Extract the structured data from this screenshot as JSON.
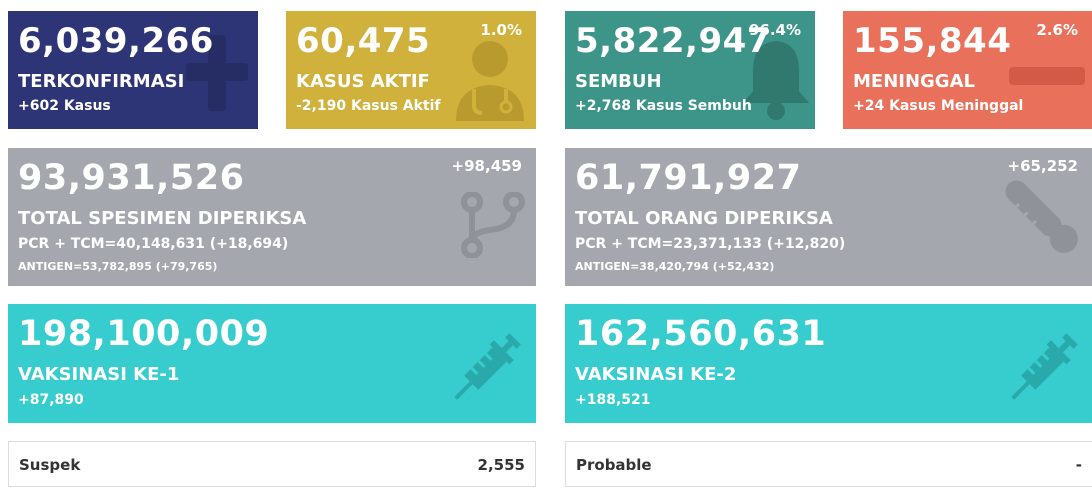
{
  "confirmed": {
    "value": "6,039,266",
    "label": "TERKONFIRMASI",
    "delta": "+602 Kasus",
    "icon": "plus-icon",
    "color": "#2e3577"
  },
  "active": {
    "value": "60,475",
    "label": "KASUS AKTIF",
    "delta": "-2,190 Kasus Aktif",
    "percent": "1.0%",
    "icon": "doctor-icon",
    "color": "#d0b13c"
  },
  "recovered": {
    "value": "5,822,947",
    "label": "SEMBUH",
    "delta": "+2,768 Kasus Sembuh",
    "percent": "96.4%",
    "icon": "bell-icon",
    "color": "#3d958a"
  },
  "deaths": {
    "value": "155,844",
    "label": "MENINGGAL",
    "delta": "+24 Kasus Meninggal",
    "percent": "2.6%",
    "icon": "minus-icon",
    "color": "#e9705a"
  },
  "specimens": {
    "value": "93,931,526",
    "label": "TOTAL SPESIMEN DIPERIKSA",
    "pcr": "PCR + TCM=40,148,631 (+18,694)",
    "antigen": "ANTIGEN=53,782,895 (+79,765)",
    "delta": "+98,459",
    "icon": "branch-icon"
  },
  "people": {
    "value": "61,791,927",
    "label": "TOTAL ORANG DIPERIKSA",
    "pcr": "PCR + TCM=23,371,133 (+12,820)",
    "antigen": "ANTIGEN=38,420,794 (+52,432)",
    "delta": "+65,252",
    "icon": "thermometer-icon"
  },
  "vaccine1": {
    "value": "198,100,009",
    "label": "VAKSINASI KE-1",
    "delta": "+87,890",
    "icon": "syringe-icon"
  },
  "vaccine2": {
    "value": "162,560,631",
    "label": "VAKSINASI KE-2",
    "delta": "+188,521",
    "icon": "syringe-icon"
  },
  "suspect": {
    "label": "Suspek",
    "value": "2,555"
  },
  "probable": {
    "label": "Probable",
    "value": "-"
  }
}
